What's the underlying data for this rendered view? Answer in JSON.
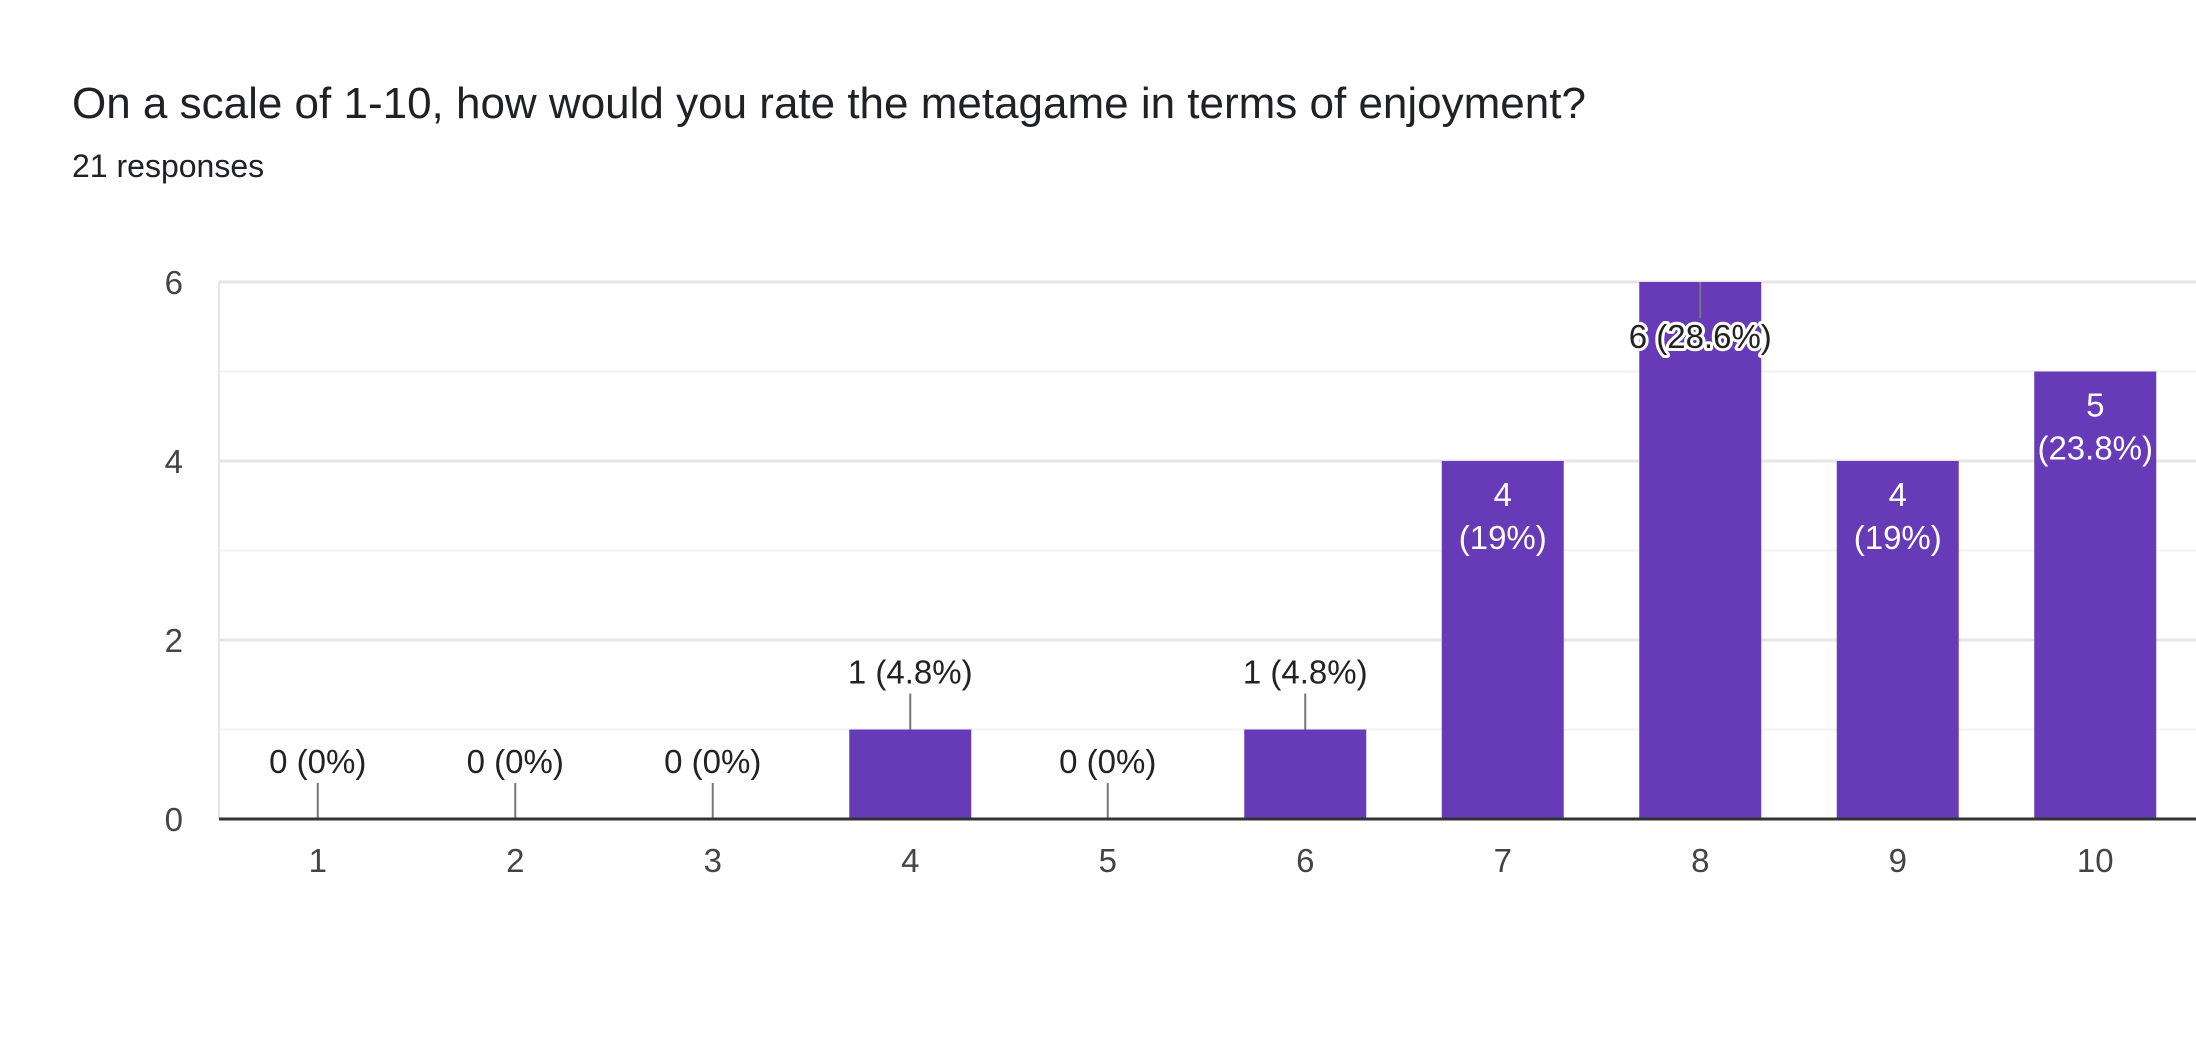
{
  "question": {
    "title": "On a scale of 1-10, how would you rate the metagame in terms of enjoyment?",
    "responses": "21 responses"
  },
  "chart_data": {
    "type": "bar",
    "categories": [
      "1",
      "2",
      "3",
      "4",
      "5",
      "6",
      "7",
      "8",
      "9",
      "10"
    ],
    "values": [
      0,
      0,
      0,
      1,
      0,
      1,
      4,
      6,
      4,
      5
    ],
    "data_labels": [
      "0 (0%)",
      "0 (0%)",
      "0 (0%)",
      "1 (4.8%)",
      "0 (0%)",
      "1 (4.8%)",
      "4 (19%)",
      "6 (28.6%)",
      "4 (19%)",
      "5 (23.8%)"
    ],
    "ylim": [
      0,
      6
    ],
    "y_ticks": [
      0,
      2,
      4,
      6
    ],
    "grid": true,
    "bar_color": "#673ab7"
  }
}
